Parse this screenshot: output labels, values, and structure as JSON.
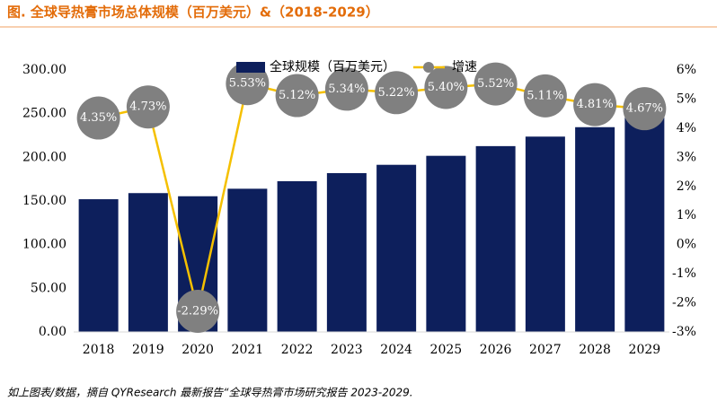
{
  "chart_data": {
    "type": "bar-line",
    "title": "图.    全球导热膏市场总体规模（百万美元）&（2018-2029）",
    "footnote": "如上图表/数据，摘自 QYResearch 最新报告“全球导热膏市场研究报告 2023-2029.",
    "categories": [
      "2018",
      "2019",
      "2020",
      "2021",
      "2022",
      "2023",
      "2024",
      "2025",
      "2026",
      "2027",
      "2028",
      "2029"
    ],
    "series": [
      {
        "name": "全球规模（百万美元）",
        "color": "#0d1f5c",
        "values": [
          152,
          159,
          155.4,
          164,
          172.6,
          181.9,
          191.4,
          201.7,
          212.8,
          223.7,
          234.5,
          245.5
        ]
      },
      {
        "name": "增速",
        "color": "#f5c000",
        "marker_color": "#808080",
        "axis": "y2",
        "values": [
          4.35,
          4.73,
          -2.29,
          5.53,
          5.12,
          5.34,
          5.22,
          5.4,
          5.52,
          5.11,
          4.81,
          4.67
        ],
        "value_labels": [
          "4.35%",
          "4.73%",
          "-2.29%",
          "5.53%",
          "5.12%",
          "5.34%",
          "5.22%",
          "5.40%",
          "5.52%",
          "5.11%",
          "4.81%",
          "4.67%"
        ]
      }
    ],
    "ylim": [
      0,
      300
    ],
    "yticks": [
      {
        "value": 0,
        "label": "0.00"
      },
      {
        "value": 50,
        "label": "50.00"
      },
      {
        "value": 100,
        "label": "100.00"
      },
      {
        "value": 150,
        "label": "150.00"
      },
      {
        "value": 200,
        "label": "200.00"
      },
      {
        "value": 250,
        "label": "250.00"
      },
      {
        "value": 300,
        "label": "300.00"
      }
    ],
    "y2lim": [
      -3,
      6
    ],
    "y2ticks": [
      {
        "value": -3,
        "label": "-3%"
      },
      {
        "value": -2,
        "label": "-2%"
      },
      {
        "value": -1,
        "label": "-1%"
      },
      {
        "value": 0,
        "label": "0%"
      },
      {
        "value": 1,
        "label": "1%"
      },
      {
        "value": 2,
        "label": "2%"
      },
      {
        "value": 3,
        "label": "3%"
      },
      {
        "value": 4,
        "label": "4%"
      },
      {
        "value": 5,
        "label": "5%"
      },
      {
        "value": 6,
        "label": "6%"
      }
    ]
  }
}
